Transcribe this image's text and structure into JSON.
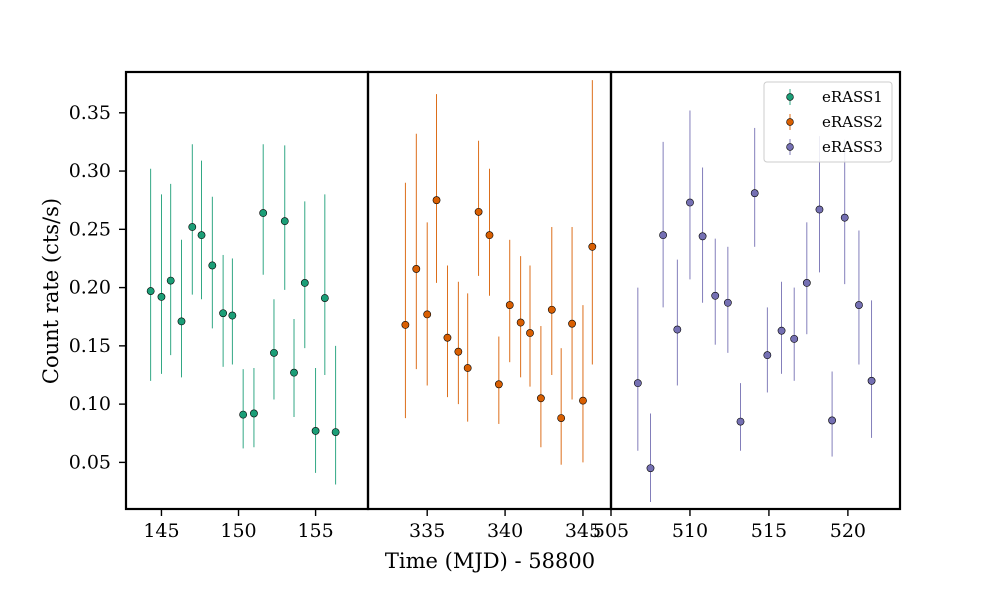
{
  "chart_data": {
    "type": "scatter",
    "title": "",
    "xlabel": "Time (MJD) - 58800",
    "ylabel": "Count rate (cts/s)",
    "ylim": [
      0.01,
      0.385
    ],
    "yticks": [
      0.05,
      0.1,
      0.15,
      0.2,
      0.25,
      0.3,
      0.35
    ],
    "ytick_labels": [
      "0.05",
      "0.10",
      "0.15",
      "0.20",
      "0.25",
      "0.30",
      "0.35"
    ],
    "legend": {
      "placement": "top-right",
      "entries": [
        "eRASS1",
        "eRASS2",
        "eRASS3"
      ]
    },
    "grid": false,
    "panels": [
      {
        "name": "eRASS1",
        "color": "#1b9e77",
        "xlim": [
          142.7,
          158.4
        ],
        "xticks": [
          145,
          150,
          155
        ],
        "xtick_labels": [
          "145",
          "150",
          "155"
        ],
        "points": [
          {
            "x": 144.3,
            "y": 0.197,
            "lo": 0.12,
            "hi": 0.302
          },
          {
            "x": 145.0,
            "y": 0.192,
            "lo": 0.126,
            "hi": 0.28
          },
          {
            "x": 145.6,
            "y": 0.206,
            "lo": 0.142,
            "hi": 0.289
          },
          {
            "x": 146.3,
            "y": 0.171,
            "lo": 0.123,
            "hi": 0.241
          },
          {
            "x": 147.0,
            "y": 0.252,
            "lo": 0.194,
            "hi": 0.323
          },
          {
            "x": 147.6,
            "y": 0.245,
            "lo": 0.19,
            "hi": 0.309
          },
          {
            "x": 148.3,
            "y": 0.219,
            "lo": 0.165,
            "hi": 0.278
          },
          {
            "x": 149.0,
            "y": 0.178,
            "lo": 0.132,
            "hi": 0.228
          },
          {
            "x": 149.6,
            "y": 0.176,
            "lo": 0.134,
            "hi": 0.225
          },
          {
            "x": 150.3,
            "y": 0.091,
            "lo": 0.062,
            "hi": 0.13
          },
          {
            "x": 151.0,
            "y": 0.092,
            "lo": 0.063,
            "hi": 0.131
          },
          {
            "x": 151.6,
            "y": 0.264,
            "lo": 0.211,
            "hi": 0.323
          },
          {
            "x": 152.3,
            "y": 0.144,
            "lo": 0.104,
            "hi": 0.19
          },
          {
            "x": 153.0,
            "y": 0.257,
            "lo": 0.198,
            "hi": 0.322
          },
          {
            "x": 153.6,
            "y": 0.127,
            "lo": 0.089,
            "hi": 0.173
          },
          {
            "x": 154.3,
            "y": 0.204,
            "lo": 0.148,
            "hi": 0.274
          },
          {
            "x": 155.0,
            "y": 0.077,
            "lo": 0.041,
            "hi": 0.131
          },
          {
            "x": 155.6,
            "y": 0.191,
            "lo": 0.125,
            "hi": 0.28
          },
          {
            "x": 156.3,
            "y": 0.076,
            "lo": 0.031,
            "hi": 0.15
          }
        ]
      },
      {
        "name": "eRASS2",
        "color": "#d95f02",
        "xlim": [
          331.2,
          346.8
        ],
        "xticks": [
          335,
          340,
          345
        ],
        "xtick_labels": [
          "335",
          "340",
          "345"
        ],
        "points": [
          {
            "x": 333.6,
            "y": 0.168,
            "lo": 0.088,
            "hi": 0.29
          },
          {
            "x": 334.3,
            "y": 0.216,
            "lo": 0.13,
            "hi": 0.332
          },
          {
            "x": 335.0,
            "y": 0.177,
            "lo": 0.116,
            "hi": 0.256
          },
          {
            "x": 335.6,
            "y": 0.275,
            "lo": 0.204,
            "hi": 0.366
          },
          {
            "x": 336.3,
            "y": 0.157,
            "lo": 0.106,
            "hi": 0.219
          },
          {
            "x": 337.0,
            "y": 0.145,
            "lo": 0.1,
            "hi": 0.205
          },
          {
            "x": 337.6,
            "y": 0.131,
            "lo": 0.085,
            "hi": 0.195
          },
          {
            "x": 338.3,
            "y": 0.265,
            "lo": 0.21,
            "hi": 0.326
          },
          {
            "x": 339.0,
            "y": 0.245,
            "lo": 0.193,
            "hi": 0.302
          },
          {
            "x": 339.6,
            "y": 0.117,
            "lo": 0.083,
            "hi": 0.158
          },
          {
            "x": 340.3,
            "y": 0.185,
            "lo": 0.136,
            "hi": 0.241
          },
          {
            "x": 341.0,
            "y": 0.17,
            "lo": 0.123,
            "hi": 0.227
          },
          {
            "x": 341.6,
            "y": 0.161,
            "lo": 0.115,
            "hi": 0.219
          },
          {
            "x": 342.3,
            "y": 0.105,
            "lo": 0.063,
            "hi": 0.167
          },
          {
            "x": 343.0,
            "y": 0.181,
            "lo": 0.125,
            "hi": 0.252
          },
          {
            "x": 343.6,
            "y": 0.088,
            "lo": 0.048,
            "hi": 0.148
          },
          {
            "x": 344.3,
            "y": 0.169,
            "lo": 0.104,
            "hi": 0.252
          },
          {
            "x": 345.0,
            "y": 0.103,
            "lo": 0.05,
            "hi": 0.185
          },
          {
            "x": 345.6,
            "y": 0.235,
            "lo": 0.134,
            "hi": 0.378
          }
        ]
      },
      {
        "name": "eRASS3",
        "color": "#7570b3",
        "xlim": [
          505.0,
          523.3
        ],
        "xticks": [
          505,
          510,
          515,
          520
        ],
        "xtick_labels": [
          "505",
          "510",
          "515",
          "520"
        ],
        "points": [
          {
            "x": 506.7,
            "y": 0.118,
            "lo": 0.06,
            "hi": 0.2
          },
          {
            "x": 507.5,
            "y": 0.045,
            "lo": 0.016,
            "hi": 0.092
          },
          {
            "x": 508.3,
            "y": 0.245,
            "lo": 0.183,
            "hi": 0.325
          },
          {
            "x": 509.2,
            "y": 0.164,
            "lo": 0.116,
            "hi": 0.224
          },
          {
            "x": 510.0,
            "y": 0.273,
            "lo": 0.207,
            "hi": 0.352
          },
          {
            "x": 510.8,
            "y": 0.244,
            "lo": 0.187,
            "hi": 0.303
          },
          {
            "x": 511.6,
            "y": 0.193,
            "lo": 0.151,
            "hi": 0.242
          },
          {
            "x": 512.4,
            "y": 0.187,
            "lo": 0.144,
            "hi": 0.235
          },
          {
            "x": 513.2,
            "y": 0.085,
            "lo": 0.06,
            "hi": 0.118
          },
          {
            "x": 514.1,
            "y": 0.281,
            "lo": 0.235,
            "hi": 0.337
          },
          {
            "x": 514.9,
            "y": 0.142,
            "lo": 0.11,
            "hi": 0.183
          },
          {
            "x": 515.8,
            "y": 0.163,
            "lo": 0.126,
            "hi": 0.205
          },
          {
            "x": 516.6,
            "y": 0.156,
            "lo": 0.12,
            "hi": 0.2
          },
          {
            "x": 517.4,
            "y": 0.204,
            "lo": 0.16,
            "hi": 0.256
          },
          {
            "x": 518.2,
            "y": 0.267,
            "lo": 0.213,
            "hi": 0.33
          },
          {
            "x": 519.0,
            "y": 0.086,
            "lo": 0.055,
            "hi": 0.128
          },
          {
            "x": 519.8,
            "y": 0.26,
            "lo": 0.203,
            "hi": 0.327
          },
          {
            "x": 520.7,
            "y": 0.185,
            "lo": 0.134,
            "hi": 0.249
          },
          {
            "x": 521.5,
            "y": 0.12,
            "lo": 0.071,
            "hi": 0.189
          }
        ]
      }
    ]
  }
}
